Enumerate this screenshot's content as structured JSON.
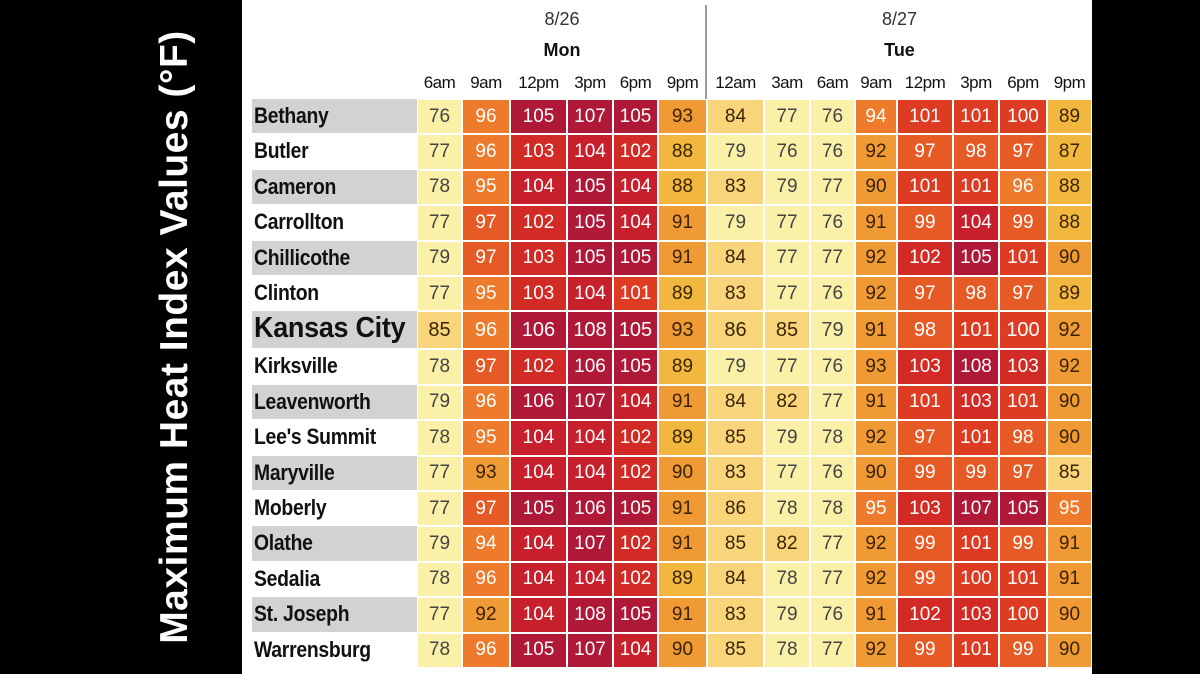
{
  "title": "Maximum Heat Index Values (°F)",
  "chart_data": {
    "type": "heatmap",
    "title": "Maximum Heat Index Values (°F)",
    "days": [
      {
        "date": "8/26",
        "day": "Mon",
        "times": [
          "6am",
          "9am",
          "12pm",
          "3pm",
          "6pm",
          "9pm"
        ]
      },
      {
        "date": "8/27",
        "day": "Tue",
        "times": [
          "12am",
          "3am",
          "6am",
          "9am",
          "12pm",
          "3pm",
          "6pm",
          "9pm"
        ]
      }
    ],
    "x": [
      "6am",
      "9am",
      "12pm",
      "3pm",
      "6pm",
      "9pm",
      "12am",
      "3am",
      "6am",
      "9am",
      "12pm",
      "3pm",
      "6pm",
      "9pm"
    ],
    "rows": [
      {
        "city": "Bethany",
        "values": [
          76,
          96,
          105,
          107,
          105,
          93,
          84,
          77,
          76,
          94,
          101,
          101,
          100,
          89
        ]
      },
      {
        "city": "Butler",
        "values": [
          77,
          96,
          103,
          104,
          102,
          88,
          79,
          76,
          76,
          92,
          97,
          98,
          97,
          87
        ]
      },
      {
        "city": "Cameron",
        "values": [
          78,
          95,
          104,
          105,
          104,
          88,
          83,
          79,
          77,
          90,
          101,
          101,
          96,
          88
        ]
      },
      {
        "city": "Carrollton",
        "values": [
          77,
          97,
          102,
          105,
          104,
          91,
          79,
          77,
          76,
          91,
          99,
          104,
          99,
          88
        ]
      },
      {
        "city": "Chillicothe",
        "values": [
          79,
          97,
          103,
          105,
          105,
          91,
          84,
          77,
          77,
          92,
          102,
          105,
          101,
          90
        ]
      },
      {
        "city": "Clinton",
        "values": [
          77,
          95,
          103,
          104,
          101,
          89,
          83,
          77,
          76,
          92,
          97,
          98,
          97,
          89
        ]
      },
      {
        "city": "Kansas City",
        "values": [
          85,
          96,
          106,
          108,
          105,
          93,
          86,
          85,
          79,
          91,
          98,
          101,
          100,
          92
        ],
        "highlight": true
      },
      {
        "city": "Kirksville",
        "values": [
          78,
          97,
          102,
          106,
          105,
          89,
          79,
          77,
          76,
          93,
          103,
          108,
          103,
          92
        ]
      },
      {
        "city": "Leavenworth",
        "values": [
          79,
          96,
          106,
          107,
          104,
          91,
          84,
          82,
          77,
          91,
          101,
          103,
          101,
          90
        ]
      },
      {
        "city": "Lee's Summit",
        "values": [
          78,
          95,
          104,
          104,
          102,
          89,
          85,
          79,
          78,
          92,
          97,
          101,
          98,
          90
        ]
      },
      {
        "city": "Maryville",
        "values": [
          77,
          93,
          104,
          104,
          102,
          90,
          83,
          77,
          76,
          90,
          99,
          99,
          97,
          85
        ]
      },
      {
        "city": "Moberly",
        "values": [
          77,
          97,
          105,
          106,
          105,
          91,
          86,
          78,
          78,
          95,
          103,
          107,
          105,
          95
        ]
      },
      {
        "city": "Olathe",
        "values": [
          79,
          94,
          104,
          107,
          102,
          91,
          85,
          82,
          77,
          92,
          99,
          101,
          99,
          91
        ]
      },
      {
        "city": "Sedalia",
        "values": [
          78,
          96,
          104,
          104,
          102,
          89,
          84,
          78,
          77,
          92,
          99,
          100,
          101,
          91
        ]
      },
      {
        "city": "St. Joseph",
        "values": [
          77,
          92,
          104,
          108,
          105,
          91,
          83,
          79,
          76,
          91,
          102,
          103,
          100,
          90
        ]
      },
      {
        "city": "Warrensburg",
        "values": [
          78,
          96,
          105,
          107,
          104,
          90,
          85,
          78,
          77,
          92,
          99,
          101,
          99,
          90
        ]
      }
    ],
    "color_scale": {
      "low": "#fbf0a8",
      "mid": "#f0a838",
      "high": "#e8582a",
      "max": "#b31b36"
    }
  }
}
